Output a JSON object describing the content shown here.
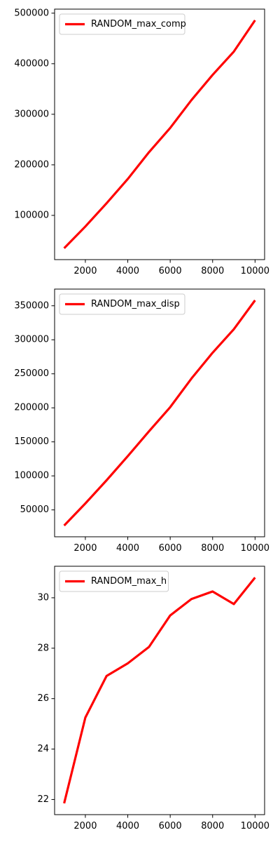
{
  "chart_data": [
    {
      "type": "line",
      "x": [
        1000,
        2000,
        3000,
        4000,
        5000,
        6000,
        7000,
        8000,
        9000,
        10000
      ],
      "series": [
        {
          "name": "RANDOM_max_comp",
          "color": "#ff0000",
          "values": [
            35000,
            78000,
            124000,
            172000,
            225000,
            273000,
            328000,
            378000,
            424000,
            486000
          ]
        }
      ],
      "xlim": [
        550,
        10450
      ],
      "ylim": [
        12500,
        508000
      ],
      "xticks": [
        2000,
        4000,
        6000,
        8000,
        10000
      ],
      "yticks": [
        100000,
        200000,
        300000,
        400000,
        500000
      ],
      "xtick_labels": [
        "2000",
        "4000",
        "6000",
        "8000",
        "10000"
      ],
      "ytick_labels": [
        "100000",
        "200000",
        "300000",
        "400000",
        "500000"
      ],
      "grid": false,
      "legend_position": "top-left"
    },
    {
      "type": "line",
      "x": [
        1000,
        2000,
        3000,
        4000,
        5000,
        6000,
        7000,
        8000,
        9000,
        10000
      ],
      "series": [
        {
          "name": "RANDOM_max_disp",
          "color": "#ff0000",
          "values": [
            27000,
            59500,
            93500,
            129000,
            165500,
            201000,
            243000,
            281000,
            315500,
            358000
          ]
        }
      ],
      "xlim": [
        550,
        10450
      ],
      "ylim": [
        10500,
        374500
      ],
      "xticks": [
        2000,
        4000,
        6000,
        8000,
        10000
      ],
      "yticks": [
        50000,
        100000,
        150000,
        200000,
        250000,
        300000,
        350000
      ],
      "xtick_labels": [
        "2000",
        "4000",
        "6000",
        "8000",
        "10000"
      ],
      "ytick_labels": [
        "50000",
        "100000",
        "150000",
        "200000",
        "250000",
        "300000",
        "350000"
      ],
      "grid": false,
      "legend_position": "top-left"
    },
    {
      "type": "line",
      "x": [
        1000,
        2000,
        3000,
        4000,
        5000,
        6000,
        7000,
        8000,
        9000,
        10000
      ],
      "series": [
        {
          "name": "RANDOM_max_h",
          "color": "#ff0000",
          "values": [
            21.85,
            25.25,
            26.9,
            27.4,
            28.05,
            29.3,
            29.95,
            30.25,
            29.75,
            30.8
          ]
        }
      ],
      "xlim": [
        550,
        10450
      ],
      "ylim": [
        21.4,
        31.25
      ],
      "xticks": [
        2000,
        4000,
        6000,
        8000,
        10000
      ],
      "yticks": [
        22,
        24,
        26,
        28,
        30
      ],
      "xtick_labels": [
        "2000",
        "4000",
        "6000",
        "8000",
        "10000"
      ],
      "ytick_labels": [
        "22",
        "24",
        "26",
        "28",
        "30"
      ],
      "grid": false,
      "legend_position": "top-left"
    }
  ]
}
